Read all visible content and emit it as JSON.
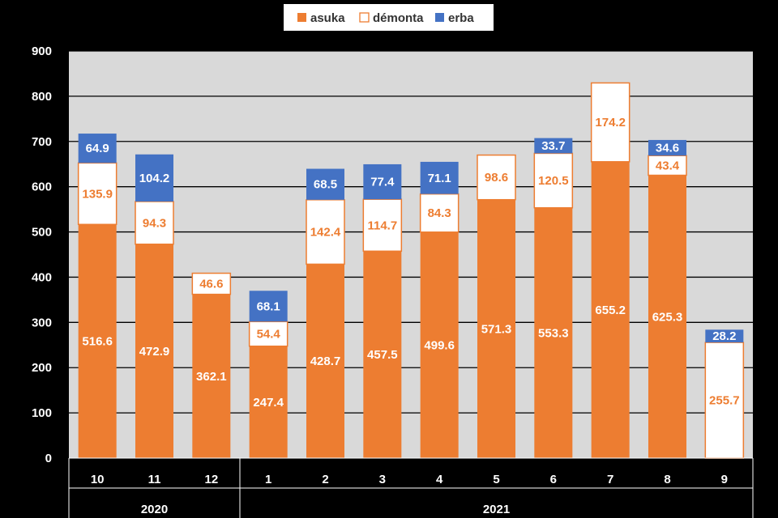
{
  "chart_data": {
    "type": "bar",
    "stacked": true,
    "categories": [
      "10",
      "11",
      "12",
      "1",
      "2",
      "3",
      "4",
      "5",
      "6",
      "7",
      "8",
      "9"
    ],
    "year_groups": [
      {
        "label": "2020",
        "from": 0,
        "to": 2
      },
      {
        "label": "2021",
        "from": 3,
        "to": 11
      }
    ],
    "series": [
      {
        "name": "asuka",
        "color": "#ED7D31",
        "values": [
          516.6,
          472.9,
          362.1,
          247.4,
          428.7,
          457.5,
          499.6,
          571.3,
          553.3,
          655.2,
          625.3,
          0
        ]
      },
      {
        "name": "démonta",
        "color": "#FFFFFF",
        "border": "#ED7D31",
        "values": [
          135.9,
          94.3,
          46.6,
          54.4,
          142.4,
          114.7,
          84.3,
          98.6,
          120.5,
          174.2,
          43.4,
          255.7
        ]
      },
      {
        "name": "erba",
        "color": "#4472C4",
        "values": [
          64.9,
          104.2,
          0,
          68.1,
          68.5,
          77.4,
          71.1,
          0,
          33.7,
          0,
          34.6,
          28.2
        ]
      }
    ],
    "ylim": [
      0,
      900
    ],
    "yticks": [
      0,
      100,
      200,
      300,
      400,
      500,
      600,
      700,
      800,
      900
    ],
    "grid": true,
    "legend_position": "top"
  }
}
